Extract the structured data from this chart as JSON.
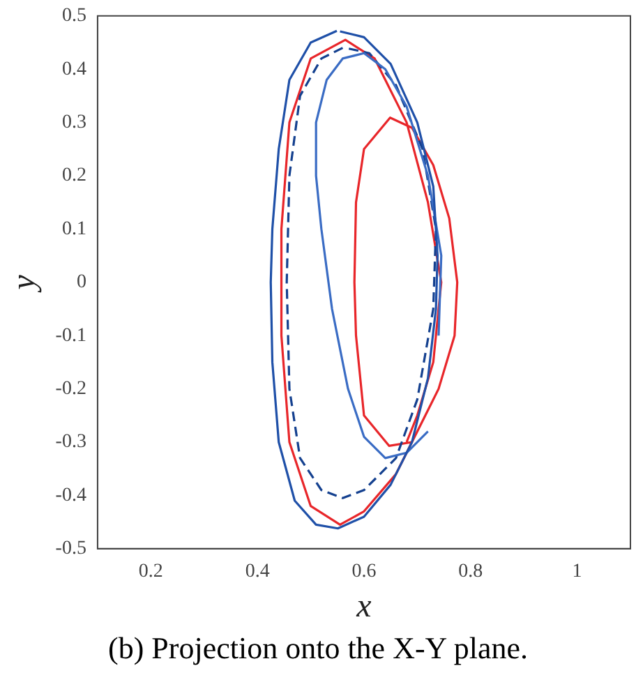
{
  "chart_data": {
    "type": "line",
    "title": "(b) Projection onto the X-Y plane.",
    "xlabel": "x",
    "ylabel": "y",
    "xlim": [
      0.1,
      1.1
    ],
    "xticks": [
      0.2,
      0.4,
      0.6,
      0.8,
      1
    ],
    "ylim": [
      -0.5,
      0.5
    ],
    "yticks": [
      -0.5,
      -0.4,
      -0.3,
      -0.2,
      -0.1,
      0,
      0.1,
      0.2,
      0.3,
      0.4,
      0.5
    ],
    "grid": false,
    "legend": false,
    "marker": "none",
    "series": [
      {
        "color": "#1f50a8",
        "line_style": "solid",
        "x": [
          0.549,
          0.5,
          0.46,
          0.44,
          0.428,
          0.425,
          0.428,
          0.44,
          0.47,
          0.51,
          0.551,
          0.6,
          0.65,
          0.69,
          0.72,
          0.735,
          0.738,
          0.73,
          0.7,
          0.65,
          0.6,
          0.555
        ],
        "values": [
          0.472,
          0.45,
          0.38,
          0.25,
          0.1,
          0,
          -0.15,
          -0.3,
          -0.41,
          -0.455,
          -0.462,
          -0.44,
          -0.38,
          -0.3,
          -0.18,
          -0.05,
          0.05,
          0.18,
          0.3,
          0.41,
          0.46,
          0.471
        ]
      },
      {
        "color": "#3a6cc4",
        "line_style": "solid",
        "x": [
          0.72,
          0.68,
          0.64,
          0.6,
          0.57,
          0.54,
          0.52,
          0.51,
          0.51,
          0.53,
          0.56,
          0.6,
          0.64,
          0.68,
          0.72,
          0.745,
          0.74
        ],
        "values": [
          -0.28,
          -0.32,
          -0.33,
          -0.29,
          -0.2,
          -0.05,
          0.1,
          0.2,
          0.3,
          0.38,
          0.42,
          0.43,
          0.4,
          0.33,
          0.2,
          0.05,
          -0.1
        ]
      },
      {
        "color": "#14408f",
        "line_style": "dashed",
        "x": [
          0.56,
          0.52,
          0.48,
          0.46,
          0.455,
          0.46,
          0.48,
          0.52,
          0.56,
          0.6,
          0.66,
          0.7,
          0.73,
          0.735,
          0.71,
          0.66,
          0.61,
          0.565
        ],
        "values": [
          0.44,
          0.42,
          0.35,
          0.2,
          0,
          -0.2,
          -0.33,
          -0.39,
          -0.405,
          -0.39,
          -0.33,
          -0.22,
          -0.05,
          0.1,
          0.25,
          0.37,
          0.43,
          0.44
        ]
      },
      {
        "color": "#e8262a",
        "line_style": "solid",
        "x": [
          0.69,
          0.647,
          0.6,
          0.585,
          0.582,
          0.585,
          0.6,
          0.649,
          0.69,
          0.73,
          0.76,
          0.775,
          0.77,
          0.74,
          0.72,
          0.66,
          0.6,
          0.555,
          0.5,
          0.46,
          0.445,
          0.445,
          0.46,
          0.5,
          0.565,
          0.62,
          0.68,
          0.72,
          0.745,
          0.73,
          0.7,
          0.68
        ],
        "values": [
          -0.3,
          -0.307,
          -0.25,
          -0.1,
          0,
          0.15,
          0.25,
          0.309,
          0.29,
          0.22,
          0.12,
          0,
          -0.1,
          -0.2,
          -0.24,
          -0.36,
          -0.43,
          -0.455,
          -0.42,
          -0.3,
          -0.1,
          0.1,
          0.3,
          0.42,
          0.455,
          0.42,
          0.3,
          0.15,
          0,
          -0.15,
          -0.25,
          -0.3
        ]
      }
    ]
  }
}
